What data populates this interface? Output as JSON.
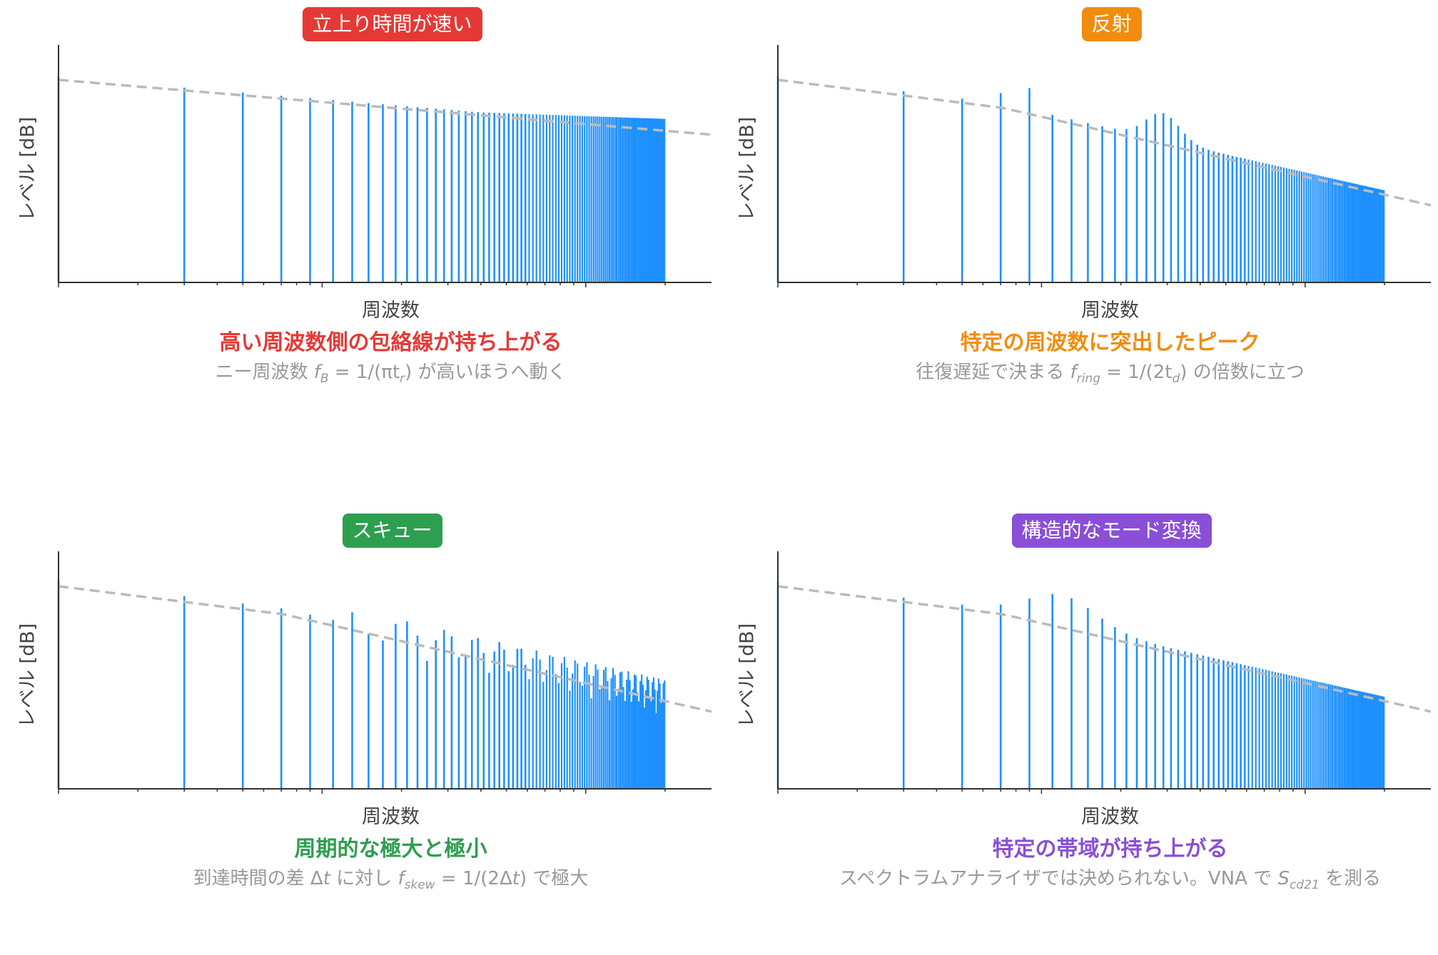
{
  "chart_data": [
    {
      "type": "bar",
      "subtype": "log-frequency spectrum (discrete harmonic lines) with dashed envelope",
      "badge": "立上り時間が速い",
      "badge_color": "#e53935",
      "caption": "高い周波数側の包絡線が持ち上がる",
      "caption_color": "#e53935",
      "subcaption": {
        "pre": "ニー周波数 ",
        "sym": "f",
        "sub": "B",
        "post": " = 1/(πt",
        "sub2": "r",
        "post2": ") が高いほうへ動く"
      },
      "xlabel": "周波数",
      "ylabel": "レベル [dB]",
      "x_scale": "log",
      "harmonics": {
        "count": 200,
        "first": 1
      },
      "profile": "fast",
      "series": [
        {
          "role": "harmonic_lines",
          "color": "#1e90ff"
        },
        {
          "role": "envelope",
          "style": "dashed",
          "color": "#bbbbbb"
        }
      ]
    },
    {
      "type": "bar",
      "subtype": "log-frequency spectrum (discrete harmonic lines) with dashed envelope",
      "badge": "反射",
      "badge_color": "#f28c0f",
      "caption": "特定の周波数に突出したピーク",
      "caption_color": "#f28c0f",
      "subcaption": {
        "pre": "往復遅延で決まる ",
        "sym": "f",
        "sub": "ring",
        "post": " = 1/(2t",
        "sub2": "d",
        "post2": ") の倍数に立つ"
      },
      "xlabel": "周波数",
      "ylabel": "レベル [dB]",
      "x_scale": "log",
      "harmonics": {
        "count": 200,
        "first": 1
      },
      "profile": "reflection",
      "series": [
        {
          "role": "harmonic_lines",
          "color": "#1e90ff"
        },
        {
          "role": "envelope",
          "style": "dashed",
          "color": "#bbbbbb"
        }
      ]
    },
    {
      "type": "bar",
      "subtype": "log-frequency spectrum (discrete harmonic lines) with dashed envelope",
      "badge": "スキュー",
      "badge_color": "#2e9e4f",
      "caption": "周期的な極大と極小",
      "caption_color": "#2e9e4f",
      "subcaption": {
        "pre": "到達時間の差 Δ",
        "sym": "t",
        "sub": "",
        "post": " に対し ",
        "sym2": "f",
        "sub2": "skew",
        "post2": " = 1/(2Δ",
        "sym3": "t",
        "post3": ") で極大"
      },
      "xlabel": "周波数",
      "ylabel": "レベル [dB]",
      "x_scale": "log",
      "harmonics": {
        "count": 200,
        "first": 1
      },
      "profile": "skew",
      "series": [
        {
          "role": "harmonic_lines",
          "color": "#1e90ff"
        },
        {
          "role": "envelope",
          "style": "dashed",
          "color": "#bbbbbb"
        }
      ]
    },
    {
      "type": "bar",
      "subtype": "log-frequency spectrum (discrete harmonic lines) with dashed envelope",
      "badge": "構造的なモード変換",
      "badge_color": "#8a4fd6",
      "caption": "特定の帯域が持ち上がる",
      "caption_color": "#8a4fd6",
      "subcaption": {
        "pre": "スペクトラムアナライザでは決められない。VNA で ",
        "sym": "S",
        "sub": "cd21",
        "post": " を測る"
      },
      "xlabel": "周波数",
      "ylabel": "レベル [dB]",
      "x_scale": "log",
      "harmonics": {
        "count": 200,
        "first": 1
      },
      "profile": "mode",
      "series": [
        {
          "role": "harmonic_lines",
          "color": "#1e90ff"
        },
        {
          "role": "envelope",
          "style": "dashed",
          "color": "#bbbbbb"
        }
      ]
    }
  ]
}
